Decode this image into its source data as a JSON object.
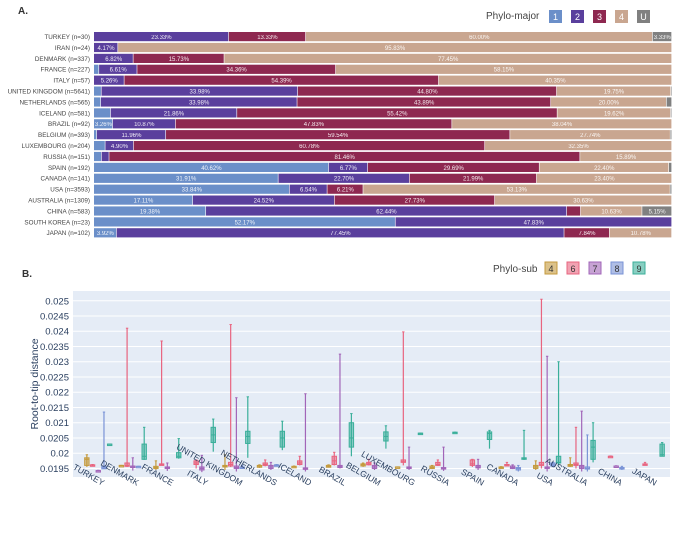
{
  "chart_data": [
    {
      "type": "bar",
      "orientation": "horizontal-stacked-percent",
      "panel_label": "A.",
      "legend_title": "Phylo-major",
      "legend_placement": "top-right",
      "legend": [
        {
          "name": "1",
          "color": "#6b8fc9"
        },
        {
          "name": "2",
          "color": "#5a3f9d"
        },
        {
          "name": "3",
          "color": "#8e2850"
        },
        {
          "name": "4",
          "color": "#c9a690"
        },
        {
          "name": "U",
          "color": "#808080"
        }
      ],
      "label_threshold_percent": 3,
      "categories": [
        "TURKEY (n=30)",
        "IRAN (n=24)",
        "DENMARK (n=337)",
        "FRANCE (n=227)",
        "ITALY (n=57)",
        "UNITED KINGDOM (n=5641)",
        "NETHERLANDS (n=565)",
        "ICELAND (n=581)",
        "BRAZIL (n=92)",
        "BELGIUM (n=393)",
        "LUXEMBOURG (n=204)",
        "RUSSIA (n=151)",
        "SPAIN (n=192)",
        "CANADA (n=141)",
        "USA (n=3593)",
        "AUSTRALIA (n=1309)",
        "CHINA (n=583)",
        "SOUTH KOREA (n=23)",
        "JAPAN (n=102)"
      ],
      "series": [
        {
          "name": "1",
          "values": [
            0,
            0,
            0,
            0.88,
            0,
            1.3,
            1.2,
            2.9,
            3.26,
            0.5,
            1.97,
            1.32,
            40.62,
            31.91,
            33.84,
            17.11,
            19.38,
            52.17,
            3.92
          ]
        },
        {
          "name": "2",
          "values": [
            23.33,
            4.17,
            6.82,
            6.61,
            5.26,
            33.98,
            33.98,
            21.86,
            10.87,
            11.96,
            4.9,
            1.33,
            6.77,
            22.7,
            6.54,
            24.52,
            62.44,
            47.83,
            77.45
          ]
        },
        {
          "name": "3",
          "values": [
            13.33,
            0,
            15.73,
            34.36,
            54.39,
            44.8,
            43.89,
            55.42,
            47.83,
            59.54,
            60.78,
            81.46,
            29.69,
            21.99,
            6.21,
            27.73,
            2.4,
            0,
            7.84
          ]
        },
        {
          "name": "4",
          "values": [
            60.0,
            95.83,
            77.45,
            58.15,
            40.35,
            19.75,
            20.0,
            19.62,
            38.04,
            27.74,
            32.35,
            15.89,
            22.4,
            23.4,
            53.13,
            30.63,
            10.63,
            0,
            10.78
          ]
        },
        {
          "name": "U",
          "values": [
            3.33,
            0,
            0,
            0,
            0,
            0.17,
            0.93,
            0.2,
            0,
            0.26,
            0,
            0,
            0.52,
            0,
            0.28,
            0,
            5.15,
            0,
            0
          ]
        }
      ]
    },
    {
      "type": "box",
      "panel_label": "B.",
      "ylabel": "Root-to-tip distance",
      "ylim": [
        0.01922,
        0.02532
      ],
      "yticks": [
        "0.0195",
        "0.02",
        "0.0205",
        "0.021",
        "0.0215",
        "0.022",
        "0.0225",
        "0.023",
        "0.0235",
        "0.024",
        "0.0245",
        "0.025"
      ],
      "grid": true,
      "legend_title": "Phylo-sub",
      "legend_placement": "top-right",
      "legend": [
        {
          "name": "4",
          "color": "#c49a3c"
        },
        {
          "name": "6",
          "color": "#e8647f"
        },
        {
          "name": "7",
          "color": "#a265b8"
        },
        {
          "name": "8",
          "color": "#7a93d6"
        },
        {
          "name": "9",
          "color": "#3aaf9a"
        }
      ],
      "categories": [
        "TURKEY",
        "DENMARK",
        "FRANCE",
        "ITALY",
        "UNITED KINGDOM",
        "NETHERLANDS",
        "ICELAND",
        "BRAZIL",
        "BELGIUM",
        "LUXEMBOURG",
        "RUSSIA",
        "SPAIN",
        "CANADA",
        "USA",
        "AUSTRALIA",
        "CHINA",
        "JAPAN"
      ],
      "boxes": [
        [
          {
            "sub": "4",
            "stats": [
              0.01955,
              0.0196,
              0.0198,
              0.01985,
              0.01995
            ]
          },
          {
            "sub": "6",
            "stats": [
              0.01958,
              0.0196,
              0.01961,
              0.01962,
              0.01963
            ]
          },
          {
            "sub": "7",
            "stats": [
              0.01942,
              0.01942,
              0.01943,
              0.01943,
              0.01944
            ]
          },
          {
            "sub": "8",
            "stats": [
              0.01949,
              0.01949,
              0.01952,
              0.01957,
              0.02135
            ]
          },
          {
            "sub": "9",
            "stats": [
              0.0203,
              0.0203,
              0.0203,
              0.0203,
              0.0203
            ]
          }
        ],
        [
          {
            "sub": "4",
            "stats": [
              0.0196,
              0.0196,
              0.0196,
              0.0196,
              0.0196
            ]
          },
          {
            "sub": "6",
            "stats": [
              0.01955,
              0.01957,
              0.0196,
              0.01968,
              0.0241
            ]
          },
          {
            "sub": "7",
            "stats": [
              0.01943,
              0.01955,
              0.01957,
              0.01958,
              0.01985
            ]
          },
          {
            "sub": "8",
            "stats": [
              0.01957,
              0.01957,
              0.01957,
              0.01957,
              0.01957
            ]
          },
          {
            "sub": "9",
            "stats": [
              0.01978,
              0.0198,
              0.0199,
              0.0203,
              0.02085
            ]
          }
        ],
        [
          {
            "sub": "4",
            "stats": [
              0.01945,
              0.0195,
              0.01953,
              0.01957,
              0.01975
            ]
          },
          {
            "sub": "6",
            "stats": [
              0.0196,
              0.0196,
              0.01962,
              0.01965,
              0.02368
            ]
          },
          {
            "sub": "7",
            "stats": [
              0.01942,
              0.0195,
              0.01952,
              0.01955,
              0.01968
            ]
          },
          {
            "sub": "9",
            "stats": [
              0.01982,
              0.01985,
              0.0199,
              0.02002,
              0.02048
            ]
          }
        ],
        [
          {
            "sub": "6",
            "stats": [
              0.0195,
              0.01963,
              0.01968,
              0.01975,
              0.01978
            ]
          },
          {
            "sub": "7",
            "stats": [
              0.01938,
              0.01945,
              0.0195,
              0.01955,
              0.01993
            ]
          },
          {
            "sub": "9",
            "stats": [
              0.02005,
              0.02035,
              0.0206,
              0.02085,
              0.02112
            ]
          }
        ],
        [
          {
            "sub": "4",
            "stats": [
              0.01945,
              0.01955,
              0.01958,
              0.0196,
              0.01995
            ]
          },
          {
            "sub": "6",
            "stats": [
              0.01955,
              0.01958,
              0.01963,
              0.0197,
              0.02422
            ]
          },
          {
            "sub": "7",
            "stats": [
              0.0194,
              0.0195,
              0.01953,
              0.01958,
              0.02182
            ]
          },
          {
            "sub": "8",
            "stats": [
              0.0195,
              0.0195,
              0.01951,
              0.01955,
              0.0196
            ]
          },
          {
            "sub": "9",
            "stats": [
              0.01985,
              0.02032,
              0.02055,
              0.02072,
              0.02185
            ]
          }
        ],
        [
          {
            "sub": "4",
            "stats": [
              0.01952,
              0.01954,
              0.01958,
              0.0196,
              0.01962
            ]
          },
          {
            "sub": "6",
            "stats": [
              0.01957,
              0.0196,
              0.01963,
              0.01968,
              0.01978
            ]
          },
          {
            "sub": "7",
            "stats": [
              0.01945,
              0.0195,
              0.01955,
              0.0196,
              0.0197
            ]
          },
          {
            "sub": "8",
            "stats": [
              0.01958,
              0.01959,
              0.0196,
              0.01962,
              0.01963
            ]
          },
          {
            "sub": "9",
            "stats": [
              0.0201,
              0.0202,
              0.0205,
              0.02072,
              0.02105
            ]
          }
        ],
        [
          {
            "sub": "4",
            "stats": [
              0.01955,
              0.01955,
              0.01956,
              0.01957,
              0.01958
            ]
          },
          {
            "sub": "6",
            "stats": [
              0.0196,
              0.01963,
              0.01968,
              0.01975,
              0.0199
            ]
          },
          {
            "sub": "7",
            "stats": [
              0.0194,
              0.01948,
              0.0195,
              0.01952,
              0.02195
            ]
          }
        ],
        [
          {
            "sub": "4",
            "stats": [
              0.01953,
              0.01954,
              0.01957,
              0.0196,
              0.01962
            ]
          },
          {
            "sub": "6",
            "stats": [
              0.0196,
              0.01963,
              0.01975,
              0.0199,
              0.02003
            ]
          },
          {
            "sub": "7",
            "stats": [
              0.0195,
              0.01953,
              0.01957,
              0.0196,
              0.02325
            ]
          },
          {
            "sub": "9",
            "stats": [
              0.0199,
              0.0202,
              0.0205,
              0.021,
              0.0213
            ]
          }
        ],
        [
          {
            "sub": "4",
            "stats": [
              0.01955,
              0.01958,
              0.01962,
              0.01965,
              0.01968
            ]
          },
          {
            "sub": "6",
            "stats": [
              0.0196,
              0.01962,
              0.01965,
              0.0197,
              0.0198
            ]
          },
          {
            "sub": "7",
            "stats": [
              0.01945,
              0.0195,
              0.01955,
              0.0196,
              0.01968
            ]
          },
          {
            "sub": "9",
            "stats": [
              0.02015,
              0.0204,
              0.02055,
              0.0207,
              0.0209
            ]
          }
        ],
        [
          {
            "sub": "4",
            "stats": [
              0.01955,
              0.01955,
              0.01955,
              0.01955,
              0.01955
            ]
          },
          {
            "sub": "6",
            "stats": [
              0.0196,
              0.0197,
              0.01972,
              0.01978,
              0.02398
            ]
          },
          {
            "sub": "7",
            "stats": [
              0.01945,
              0.0195,
              0.01953,
              0.01955,
              0.0202
            ]
          },
          {
            "sub": "9",
            "stats": [
              0.02064,
              0.02065,
              0.02065,
              0.02066,
              0.02066
            ]
          }
        ],
        [
          {
            "sub": "4",
            "stats": [
              0.01948,
              0.0195,
              0.01953,
              0.01958,
              0.0196
            ]
          },
          {
            "sub": "6",
            "stats": [
              0.01958,
              0.0196,
              0.01963,
              0.0197,
              0.01978
            ]
          },
          {
            "sub": "7",
            "stats": [
              0.01942,
              0.01948,
              0.0195,
              0.01953,
              0.0202
            ]
          },
          {
            "sub": "9",
            "stats": [
              0.02067,
              0.02068,
              0.02068,
              0.02069,
              0.02069
            ]
          }
        ],
        [
          {
            "sub": "6",
            "stats": [
              0.01955,
              0.0196,
              0.01965,
              0.01978,
              0.0198
            ]
          },
          {
            "sub": "7",
            "stats": [
              0.01945,
              0.01952,
              0.01955,
              0.0196,
              0.0198
            ]
          },
          {
            "sub": "9",
            "stats": [
              0.02015,
              0.02045,
              0.02065,
              0.0207,
              0.02075
            ]
          }
        ],
        [
          {
            "sub": "4",
            "stats": [
              0.0195,
              0.01952,
              0.01953,
              0.01955,
              0.01956
            ]
          },
          {
            "sub": "6",
            "stats": [
              0.01957,
              0.0196,
              0.01962,
              0.01963,
              0.0197
            ]
          },
          {
            "sub": "7",
            "stats": [
              0.01948,
              0.0195,
              0.01953,
              0.01958,
              0.01962
            ]
          },
          {
            "sub": "8",
            "stats": [
              0.0194,
              0.01945,
              0.0195,
              0.01953,
              0.0196
            ]
          },
          {
            "sub": "9",
            "stats": [
              0.01978,
              0.0198,
              0.01982,
              0.01985,
              0.02075
            ]
          }
        ],
        [
          {
            "sub": "4",
            "stats": [
              0.01945,
              0.0195,
              0.01955,
              0.0196,
              0.01975
            ]
          },
          {
            "sub": "6",
            "stats": [
              0.0195,
              0.0196,
              0.01962,
              0.0197,
              0.02505
            ]
          },
          {
            "sub": "7",
            "stats": [
              0.0194,
              0.0195,
              0.01952,
              0.01955,
              0.02318
            ]
          },
          {
            "sub": "8",
            "stats": [
              0.01955,
              0.01958,
              0.01962,
              0.01968,
              0.0197
            ]
          },
          {
            "sub": "9",
            "stats": [
              0.0196,
              0.01968,
              0.0197,
              0.0199,
              0.023
            ]
          }
        ],
        [
          {
            "sub": "4",
            "stats": [
              0.01955,
              0.01957,
              0.0196,
              0.01963,
              0.01985
            ]
          },
          {
            "sub": "6",
            "stats": [
              0.0195,
              0.0196,
              0.01963,
              0.01968,
              0.02085
            ]
          },
          {
            "sub": "7",
            "stats": [
              0.0194,
              0.0195,
              0.01955,
              0.0196,
              0.02138
            ]
          },
          {
            "sub": "8",
            "stats": [
              0.0194,
              0.01948,
              0.0195,
              0.01955,
              0.0206
            ]
          },
          {
            "sub": "9",
            "stats": [
              0.0197,
              0.0198,
              0.0202,
              0.02042,
              0.021
            ]
          }
        ],
        [
          {
            "sub": "6",
            "stats": [
              0.01989,
              0.0199,
              0.0199,
              0.0199,
              0.01991
            ]
          },
          {
            "sub": "7",
            "stats": [
              0.01957,
              0.01958,
              0.01958,
              0.01958,
              0.01959
            ]
          },
          {
            "sub": "8",
            "stats": [
              0.01945,
              0.01948,
              0.0195,
              0.01953,
              0.01957
            ]
          }
        ],
        [
          {
            "sub": "6",
            "stats": [
              0.0196,
              0.01962,
              0.01962,
              0.01965,
              0.0197
            ]
          },
          {
            "sub": "9",
            "stats": [
              0.0199,
              0.0199,
              0.01995,
              0.0203,
              0.02035
            ]
          }
        ]
      ]
    }
  ]
}
